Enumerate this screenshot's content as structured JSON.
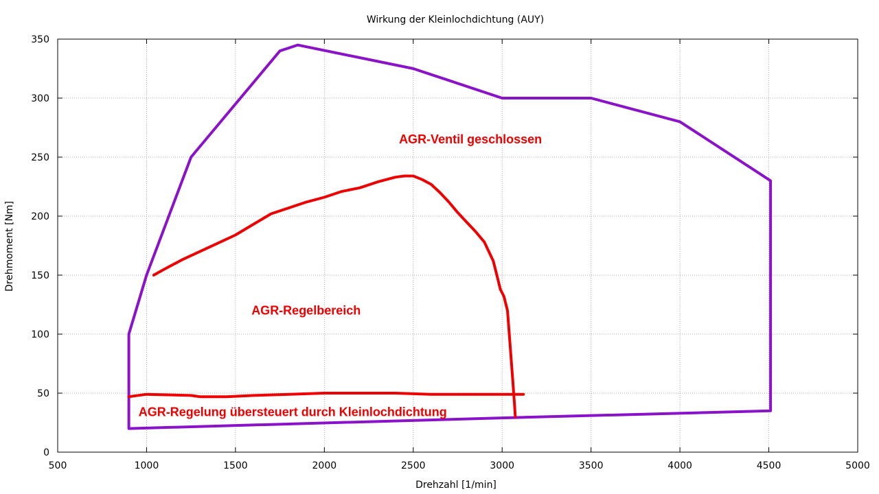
{
  "chart_data": {
    "type": "line",
    "title": "Wirkung der Kleinlochdichtung  (AUY)",
    "xlabel": "Drehzahl [1/min]",
    "ylabel": "Drehmoment [Nm]",
    "xlim": [
      500,
      5000
    ],
    "ylim": [
      0,
      350
    ],
    "xticks": [
      "500",
      "1000",
      "1500",
      "2000",
      "2500",
      "3000",
      "3500",
      "4000",
      "4500",
      "5000"
    ],
    "yticks": [
      "0",
      "50",
      "100",
      "150",
      "200",
      "250",
      "300",
      "350"
    ],
    "grid": true,
    "colors": {
      "outline": "#8a12c8",
      "agr": "#ee0000",
      "grid": "#aaaaaa"
    },
    "series": [
      {
        "name": "",
        "role": "outline",
        "x": [
          900,
          900,
          1000,
          1250,
          1750,
          1850,
          2500,
          3000,
          3500,
          4000,
          4510,
          4510,
          3000,
          900
        ],
        "y": [
          20,
          100,
          150,
          250,
          340,
          345,
          325,
          300,
          300,
          280,
          230,
          35,
          29,
          20
        ]
      },
      {
        "name": "",
        "role": "agr-upper-boundary",
        "x": [
          1040,
          1100,
          1200,
          1300,
          1400,
          1500,
          1600,
          1700,
          1800,
          1900,
          2000,
          2100,
          2200,
          2300,
          2400,
          2450,
          2500,
          2550,
          2600,
          2650,
          2700,
          2750,
          2800,
          2850,
          2900,
          2950,
          2970,
          2990,
          3010,
          3030,
          3040,
          3050,
          3060,
          3065,
          3070,
          3073,
          3075,
          3075
        ],
        "y": [
          150,
          155,
          163,
          170,
          177,
          184,
          193,
          202,
          207,
          212,
          216,
          221,
          224,
          229,
          233,
          234,
          234,
          231,
          227,
          220,
          212,
          203,
          195,
          187,
          178,
          162,
          150,
          138,
          132,
          120,
          100,
          80,
          60,
          50,
          40,
          32,
          30,
          30
        ]
      },
      {
        "name": "",
        "role": "agr-lower-boundary",
        "x": [
          900,
          1000,
          1250,
          1300,
          1450,
          1600,
          1800,
          2000,
          2200,
          2400,
          2600,
          2800,
          3000,
          3100,
          3120
        ],
        "y": [
          47,
          49,
          48,
          47,
          47,
          48,
          49,
          50,
          50,
          50,
          49,
          49,
          49,
          49,
          49
        ]
      }
    ],
    "annotations": [
      {
        "text": "AGR-Ventil geschlossen",
        "x": 2420,
        "y": 265
      },
      {
        "text": "AGR-Regelbereich",
        "x": 1590,
        "y": 120
      },
      {
        "text": "AGR-Regelung übersteuert durch Kleinlochdichtung",
        "x": 955,
        "y": 34
      }
    ]
  }
}
